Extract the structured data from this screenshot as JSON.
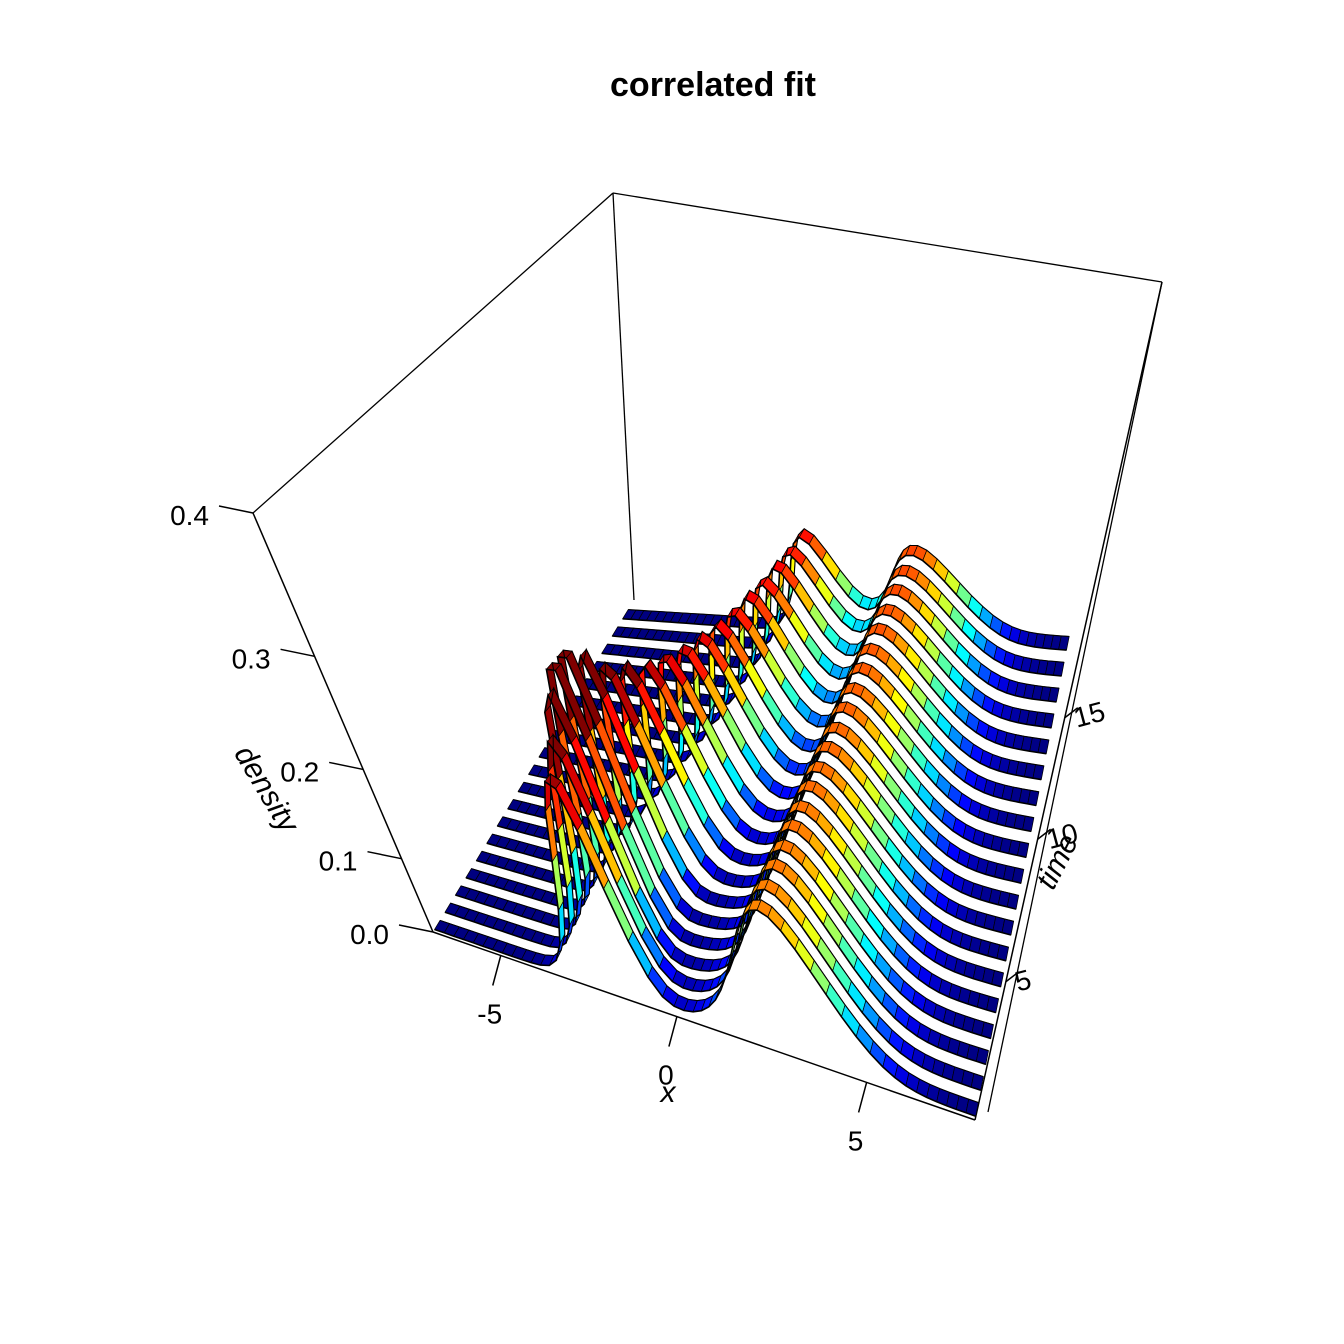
{
  "page": {
    "background": "#ffffff"
  },
  "chart_data": {
    "type": "surface",
    "title": "correlated fit",
    "xlabel": "x",
    "ylabel": "time",
    "zlabel": "density",
    "x_range": [
      -7,
      7
    ],
    "x_step": 0.25,
    "x_ticks": [
      "-5",
      "0",
      "5"
    ],
    "x_tick_values": [
      -5,
      0,
      5
    ],
    "time_ticks": [
      "5",
      "10",
      "15"
    ],
    "time_tick_values": [
      5,
      10,
      15
    ],
    "density_ticks": [
      "0.0",
      "0.1",
      "0.2",
      "0.3",
      "0.4"
    ],
    "density_range": [
      0,
      0.4
    ],
    "time_data_range": [
      0,
      20
    ],
    "grid": false,
    "legend": "none",
    "colormap": "jet",
    "color_scale_max_density": 0.245,
    "flat_color": "#000080",
    "edge_color": "#000000",
    "mixture_weights": [
      0.4,
      0.6
    ],
    "ribbon_width_t": 0.55,
    "rows": [
      {
        "t": 0.15,
        "mu1": -2.4,
        "s1": 0.66,
        "mu2": 2.5,
        "s2": 1.3
      },
      {
        "t": 1.19,
        "mu1": -2.45,
        "s1": 0.61,
        "mu2": 2.52,
        "s2": 1.29
      },
      {
        "t": 2.23,
        "mu1": -2.55,
        "s1": 0.55,
        "mu2": 2.55,
        "s2": 1.28
      },
      {
        "t": 3.27,
        "mu1": -2.62,
        "s1": 0.52,
        "mu2": 2.57,
        "s2": 1.28
      },
      {
        "t": 4.31,
        "mu1": -2.62,
        "s1": 0.52,
        "mu2": 2.6,
        "s2": 1.27
      },
      {
        "t": 5.35,
        "mu1": -2.55,
        "s1": 0.55,
        "mu2": 2.62,
        "s2": 1.27
      },
      {
        "t": 6.39,
        "mu1": -2.42,
        "s1": 0.6,
        "mu2": 2.65,
        "s2": 1.26
      },
      {
        "t": 7.43,
        "mu1": -2.25,
        "s1": 0.63,
        "mu2": 2.67,
        "s2": 1.26
      },
      {
        "t": 8.47,
        "mu1": -2.05,
        "s1": 0.66,
        "mu2": 2.7,
        "s2": 1.25
      },
      {
        "t": 9.51,
        "mu1": -1.85,
        "s1": 0.68,
        "mu2": 2.72,
        "s2": 1.25
      },
      {
        "t": 10.55,
        "mu1": -1.65,
        "s1": 0.7,
        "mu2": 2.74,
        "s2": 1.24
      },
      {
        "t": 11.59,
        "mu1": -1.45,
        "s1": 0.71,
        "mu2": 2.76,
        "s2": 1.24
      },
      {
        "t": 12.63,
        "mu1": -1.28,
        "s1": 0.72,
        "mu2": 2.78,
        "s2": 1.23
      },
      {
        "t": 13.67,
        "mu1": -1.1,
        "s1": 0.73,
        "mu2": 2.8,
        "s2": 1.23
      },
      {
        "t": 14.71,
        "mu1": -0.95,
        "s1": 0.73,
        "mu2": 2.82,
        "s2": 1.22
      },
      {
        "t": 15.75,
        "mu1": -0.82,
        "s1": 0.74,
        "mu2": 2.84,
        "s2": 1.22
      },
      {
        "t": 16.79,
        "mu1": -0.7,
        "s1": 0.74,
        "mu2": 2.86,
        "s2": 1.21
      },
      {
        "t": 17.83,
        "mu1": -0.6,
        "s1": 0.75,
        "mu2": 2.88,
        "s2": 1.21
      },
      {
        "t": 18.87,
        "mu1": -0.52,
        "s1": 0.75,
        "mu2": 2.9,
        "s2": 1.2
      }
    ]
  }
}
